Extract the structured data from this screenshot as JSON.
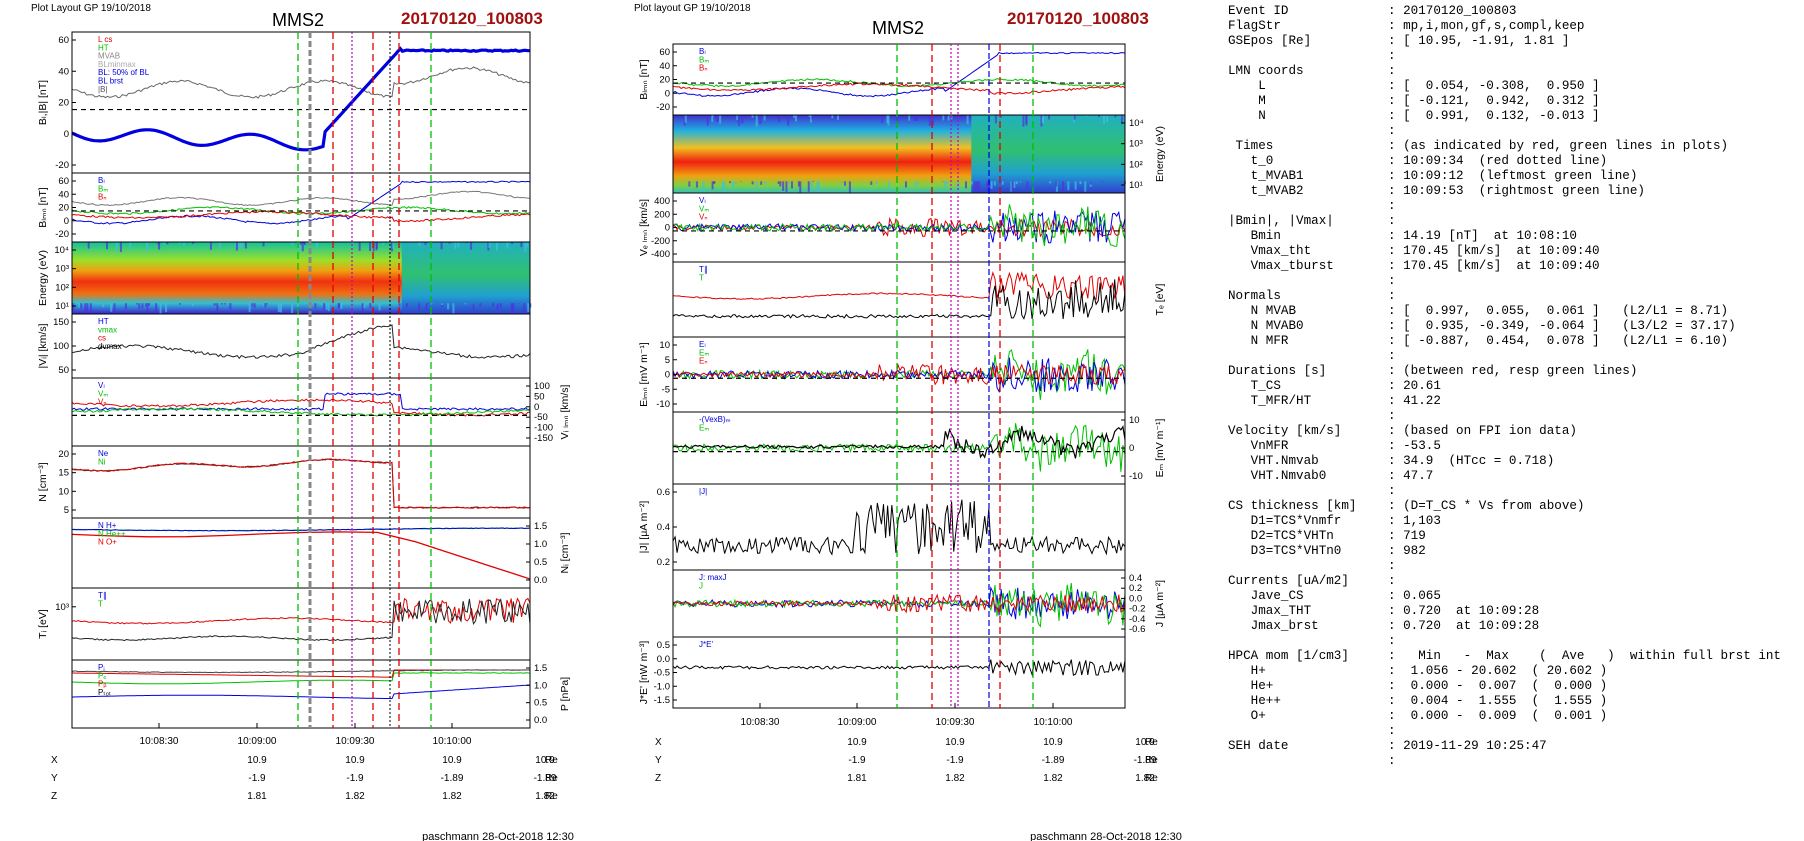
{
  "left_page": {
    "corner_label": "Plot Layout GP 19/10/2018",
    "title": "MMS2",
    "event": "20170120_100803",
    "footer": "paschmann 28-Oct-2018 12:30"
  },
  "right_page": {
    "corner_label": "Plot layout GP 19/10/2018",
    "title": "MMS2",
    "event": "20170120_100803",
    "footer": "paschmann 28-Oct-2018 12:30"
  },
  "colors": {
    "event": "#a01010",
    "red": "#e00000",
    "green": "#00c000",
    "blue": "#0000e0",
    "magenta": "#c000c0"
  },
  "chart_data": [
    {
      "type": "line",
      "x_ticks": [
        "10:08:30",
        "10:09:00",
        "10:09:30",
        "10:10:00"
      ],
      "position_table": {
        "rows": [
          {
            "label": "X",
            "values": [
              "10.9",
              "10.9",
              "10.9",
              "10.9"
            ],
            "unit": "Re"
          },
          {
            "label": "Y",
            "values": [
              "-1.9",
              "-1.9",
              "-1.89",
              "-1.89"
            ],
            "unit": "Re"
          },
          {
            "label": "Z",
            "values": [
              "1.81",
              "1.82",
              "1.82",
              "1.82"
            ],
            "unit": "Re"
          }
        ]
      },
      "panels": [
        {
          "ylabel": "Bₗ,|B| [nT]",
          "yticks": [
            "60",
            "40",
            "20",
            "0",
            "-20"
          ],
          "legend": [
            "L cs",
            "HT",
            "MVAB",
            "BLminmax",
            "BL: 50% of BL",
            "BL brst",
            "|B|"
          ]
        },
        {
          "ylabel": "Bₗₘₙ [nT]",
          "yticks": [
            "60",
            "40",
            "20",
            "0",
            "-20"
          ],
          "legend": [
            "Bₗ",
            "Bₘ",
            "Bₙ"
          ]
        },
        {
          "ylabel": "Energy (eV)",
          "yticks": [
            "10⁴",
            "10³",
            "10²",
            "10¹"
          ],
          "legend": []
        },
        {
          "ylabel": "|Vᵢ| [km/s]",
          "yticks": [
            "150",
            "100",
            "50"
          ],
          "legend": [
            "HT",
            "vmax",
            "cs",
            "dvmax"
          ]
        },
        {
          "ylabel": "Vᵢ ₗₘₙ [km/s]",
          "yticks": [
            "100",
            "50",
            "0",
            "-50",
            "-100",
            "-150"
          ],
          "legend": [
            "Vₗ",
            "Vₘ",
            "Vₙ"
          ]
        },
        {
          "ylabel": "N [cm⁻³]",
          "yticks": [
            "20",
            "15",
            "10",
            "5"
          ],
          "legend": [
            "Ne",
            "Ni"
          ]
        },
        {
          "ylabel": "Nᵢ [cm⁻³]",
          "yticks": [
            "1.5",
            "1.0",
            "0.5",
            "0.0"
          ],
          "legend": [
            "N H+",
            "N He++",
            "N O+"
          ]
        },
        {
          "ylabel": "Tᵢ [eV]",
          "yticks": [
            "10³"
          ],
          "legend": [
            "T∥",
            "T"
          ]
        },
        {
          "ylabel": "P [nPa]",
          "yticks": [
            "1.5",
            "1.0",
            "0.5",
            "0.0"
          ],
          "legend": [
            "Pᵢ",
            "Pₑ",
            "Pᵦ",
            "Pₜₒₜ"
          ]
        }
      ]
    },
    {
      "type": "line",
      "x_ticks": [
        "10:08:30",
        "10:09:00",
        "10:09:30",
        "10:10:00"
      ],
      "position_table": {
        "rows": [
          {
            "label": "X",
            "values": [
              "10.9",
              "10.9",
              "10.9",
              "10.9"
            ],
            "unit": "Re"
          },
          {
            "label": "Y",
            "values": [
              "-1.9",
              "-1.9",
              "-1.89",
              "-1.89"
            ],
            "unit": "Re"
          },
          {
            "label": "Z",
            "values": [
              "1.81",
              "1.82",
              "1.82",
              "1.82"
            ],
            "unit": "Re"
          }
        ]
      },
      "panels": [
        {
          "ylabel": "Bₗₘₙ [nT]",
          "yticks": [
            "60",
            "40",
            "20",
            "0",
            "-20"
          ],
          "legend": [
            "Bₗ",
            "Bₘ",
            "Bₙ"
          ]
        },
        {
          "ylabel": "Energy (eV)",
          "yticks": [
            "10⁴",
            "10³",
            "10²",
            "10¹"
          ],
          "legend": []
        },
        {
          "ylabel": "Vₑ ₗₘₙ [km/s]",
          "yticks": [
            "400",
            "200",
            "0",
            "-200",
            "-400"
          ],
          "legend": [
            "Vₗ",
            "Vₘ",
            "Vₙ"
          ]
        },
        {
          "ylabel": "Tₑ [eV]",
          "yticks": [],
          "legend": [
            "T∥",
            "T"
          ]
        },
        {
          "ylabel": "Eₗₘₙ [mV m⁻¹]",
          "yticks": [
            "10",
            "5",
            "0",
            "-5",
            "-10"
          ],
          "legend": [
            "Eₗ",
            "Eₘ",
            "Eₙ"
          ]
        },
        {
          "ylabel": "Eₘ [mV m⁻¹]",
          "yticks": [
            "10",
            "0",
            "-10"
          ],
          "legend": [
            "-(VexB)ₘ",
            "Eₘ"
          ]
        },
        {
          "ylabel": "|J| [μA m⁻²]",
          "yticks": [
            "0.6",
            "0.4",
            "0.2"
          ],
          "legend": [
            "|J|"
          ]
        },
        {
          "ylabel": "J [μA m⁻²]",
          "yticks": [
            "0.4",
            "0.2",
            "0.0",
            "-0.2",
            "-0.4",
            "-0.6"
          ],
          "legend": [
            "J: maxJ",
            "J"
          ]
        },
        {
          "ylabel": "J*E' [nW m⁻³]",
          "yticks": [
            "0.5",
            "0.0",
            "-0.5",
            "-1.0",
            "-1.5"
          ],
          "legend": [
            "J*E'"
          ]
        }
      ]
    }
  ],
  "summary": {
    "lines": [
      [
        "Event ID",
        ": 20170120_100803"
      ],
      [
        "FlagStr",
        ": mp,i,mon,gf,s,compl,keep"
      ],
      [
        "GSEpos [Re]",
        ": [ 10.95, -1.91, 1.81 ]"
      ],
      [
        "",
        ":"
      ],
      [
        "LMN coords",
        ":"
      ],
      [
        "    L",
        ": [  0.054, -0.308,  0.950 ]"
      ],
      [
        "    M",
        ": [ -0.121,  0.942,  0.312 ]"
      ],
      [
        "    N",
        ": [  0.991,  0.132, -0.013 ]"
      ],
      [
        "",
        ":"
      ],
      [
        " Times",
        ": (as indicated by red, green lines in plots)"
      ],
      [
        "   t_0",
        ": 10:09:34  (red dotted line)"
      ],
      [
        "   t_MVAB1",
        ": 10:09:12  (leftmost green line)"
      ],
      [
        "   t_MVAB2",
        ": 10:09:53  (rightmost green line)"
      ],
      [
        "",
        ":"
      ],
      [
        "|Bmin|, |Vmax|",
        ":"
      ],
      [
        "   Bmin",
        ": 14.19 [nT]  at 10:08:10"
      ],
      [
        "   Vmax_tht",
        ": 170.45 [km/s]  at 10:09:40"
      ],
      [
        "   Vmax_tburst",
        ": 170.45 [km/s]  at 10:09:40"
      ],
      [
        "",
        ":"
      ],
      [
        "Normals",
        ":"
      ],
      [
        "   N MVAB",
        ": [  0.997,  0.055,  0.061 ]   (L2/L1 = 8.71)"
      ],
      [
        "   N MVAB0",
        ": [  0.935, -0.349, -0.064 ]   (L3/L2 = 37.17)"
      ],
      [
        "   N MFR",
        ": [ -0.887,  0.454,  0.078 ]   (L2/L1 = 6.10)"
      ],
      [
        "",
        ":"
      ],
      [
        "Durations [s]",
        ": (between red, resp green lines)"
      ],
      [
        "   T_CS",
        ": 20.61"
      ],
      [
        "   T_MFR/HT",
        ": 41.22"
      ],
      [
        "",
        ":"
      ],
      [
        "Velocity [km/s]",
        ": (based on FPI ion data)"
      ],
      [
        "   VnMFR",
        ": -53.5"
      ],
      [
        "   VHT.Nmvab",
        ": 34.9  (HTcc = 0.718)"
      ],
      [
        "   VHT.Nmvab0",
        ": 47.7"
      ],
      [
        "",
        ":"
      ],
      [
        "CS thickness [km]",
        ": (D=T_CS * Vs from above)"
      ],
      [
        "   D1=TCS*Vnmfr",
        ": 1,103"
      ],
      [
        "   D2=TCS*VHTn",
        ": 719"
      ],
      [
        "   D3=TCS*VHTn0",
        ": 982"
      ],
      [
        "",
        ":"
      ],
      [
        "Currents [uA/m2]",
        ":"
      ],
      [
        "   Jave_CS",
        ": 0.065"
      ],
      [
        "   Jmax_THT",
        ": 0.720  at 10:09:28"
      ],
      [
        "   Jmax_brst",
        ": 0.720  at 10:09:28"
      ],
      [
        "",
        ":"
      ],
      [
        "HPCA mom [1/cm3]",
        ":   Min   -  Max    (  Ave   )  within full brst int"
      ],
      [
        "   H+",
        ":  1.056 - 20.602  ( 20.602 )"
      ],
      [
        "   He+",
        ":  0.000 -  0.007  (  0.000 )"
      ],
      [
        "   He++",
        ":  0.004 -  1.555  (  1.555 )"
      ],
      [
        "   O+",
        ":  0.000 -  0.009  (  0.001 )"
      ],
      [
        "",
        ":"
      ],
      [
        "SEH date",
        ": 2019-11-29 10:25:47"
      ],
      [
        "",
        ":"
      ]
    ]
  }
}
